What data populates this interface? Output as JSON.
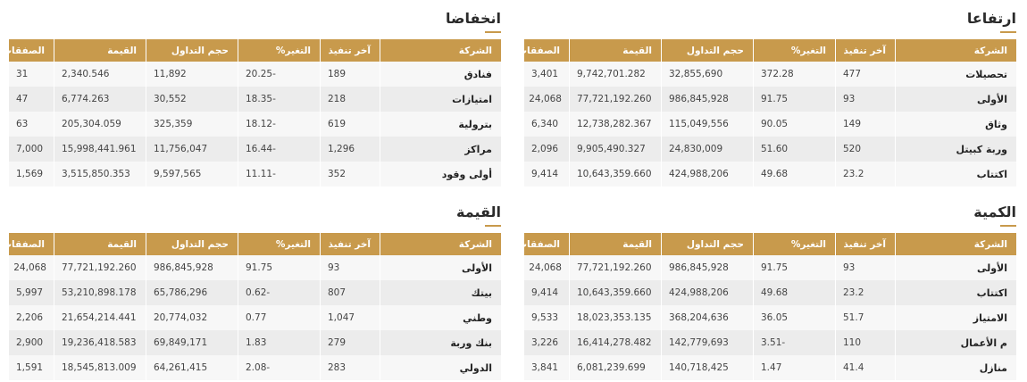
{
  "columns": {
    "company": "الشركة",
    "last": "آخر تنفيذ",
    "change": "التغير%",
    "volume": "حجم التداول",
    "value": "القيمة",
    "trades": "الصفقات"
  },
  "panels": {
    "gainers": {
      "title": "ارتفاعا",
      "rows": [
        {
          "company": "تحصيلات",
          "last": "477",
          "change": "372.28",
          "volume": "32,855,690",
          "value": "9,742,701.282",
          "trades": "3,401"
        },
        {
          "company": "الأولى",
          "last": "93",
          "change": "91.75",
          "volume": "986,845,928",
          "value": "77,721,192.260",
          "trades": "24,068"
        },
        {
          "company": "وثاق",
          "last": "149",
          "change": "90.05",
          "volume": "115,049,556",
          "value": "12,738,282.367",
          "trades": "6,340"
        },
        {
          "company": "وربة كبيتل",
          "last": "520",
          "change": "51.60",
          "volume": "24,830,009",
          "value": "9,905,490.327",
          "trades": "2,096"
        },
        {
          "company": "اكتتاب",
          "last": "23.2",
          "change": "49.68",
          "volume": "424,988,206",
          "value": "10,643,359.660",
          "trades": "9,414"
        }
      ]
    },
    "losers": {
      "title": "انخفاضا",
      "rows": [
        {
          "company": "فنادق",
          "last": "189",
          "change": "-20.25",
          "volume": "11,892",
          "value": "2,340.546",
          "trades": "31"
        },
        {
          "company": "امتيازات",
          "last": "218",
          "change": "-18.35",
          "volume": "30,552",
          "value": "6,774.263",
          "trades": "47"
        },
        {
          "company": "بترولية",
          "last": "619",
          "change": "-18.12",
          "volume": "325,359",
          "value": "205,304.059",
          "trades": "63"
        },
        {
          "company": "مراكز",
          "last": "1,296",
          "change": "-16.44",
          "volume": "11,756,047",
          "value": "15,998,441.961",
          "trades": "7,000"
        },
        {
          "company": "أولى وقود",
          "last": "352",
          "change": "-11.11",
          "volume": "9,597,565",
          "value": "3,515,850.353",
          "trades": "1,569"
        }
      ]
    },
    "quantity": {
      "title": "الكمية",
      "rows": [
        {
          "company": "الأولى",
          "last": "93",
          "change": "91.75",
          "volume": "986,845,928",
          "value": "77,721,192.260",
          "trades": "24,068"
        },
        {
          "company": "اكتتاب",
          "last": "23.2",
          "change": "49.68",
          "volume": "424,988,206",
          "value": "10,643,359.660",
          "trades": "9,414"
        },
        {
          "company": "الامتياز",
          "last": "51.7",
          "change": "36.05",
          "volume": "368,204,636",
          "value": "18,023,353.135",
          "trades": "9,533"
        },
        {
          "company": "م الأعمال",
          "last": "110",
          "change": "-3.51",
          "volume": "142,779,693",
          "value": "16,414,278.482",
          "trades": "3,226"
        },
        {
          "company": "منازل",
          "last": "41.4",
          "change": "1.47",
          "volume": "140,718,425",
          "value": "6,081,239.699",
          "trades": "3,841"
        }
      ]
    },
    "value": {
      "title": "القيمة",
      "rows": [
        {
          "company": "الأولى",
          "last": "93",
          "change": "91.75",
          "volume": "986,845,928",
          "value": "77,721,192.260",
          "trades": "24,068"
        },
        {
          "company": "بيتك",
          "last": "807",
          "change": "-0.62",
          "volume": "65,786,296",
          "value": "53,210,898.178",
          "trades": "5,997"
        },
        {
          "company": "وطني",
          "last": "1,047",
          "change": "0.77",
          "volume": "20,774,032",
          "value": "21,654,214.441",
          "trades": "2,206"
        },
        {
          "company": "بنك وربة",
          "last": "279",
          "change": "1.83",
          "volume": "69,849,171",
          "value": "19,236,418.583",
          "trades": "2,900"
        },
        {
          "company": "الدولي",
          "last": "283",
          "change": "-2.08",
          "volume": "64,261,415",
          "value": "18,545,813.009",
          "trades": "1,591"
        }
      ]
    }
  }
}
